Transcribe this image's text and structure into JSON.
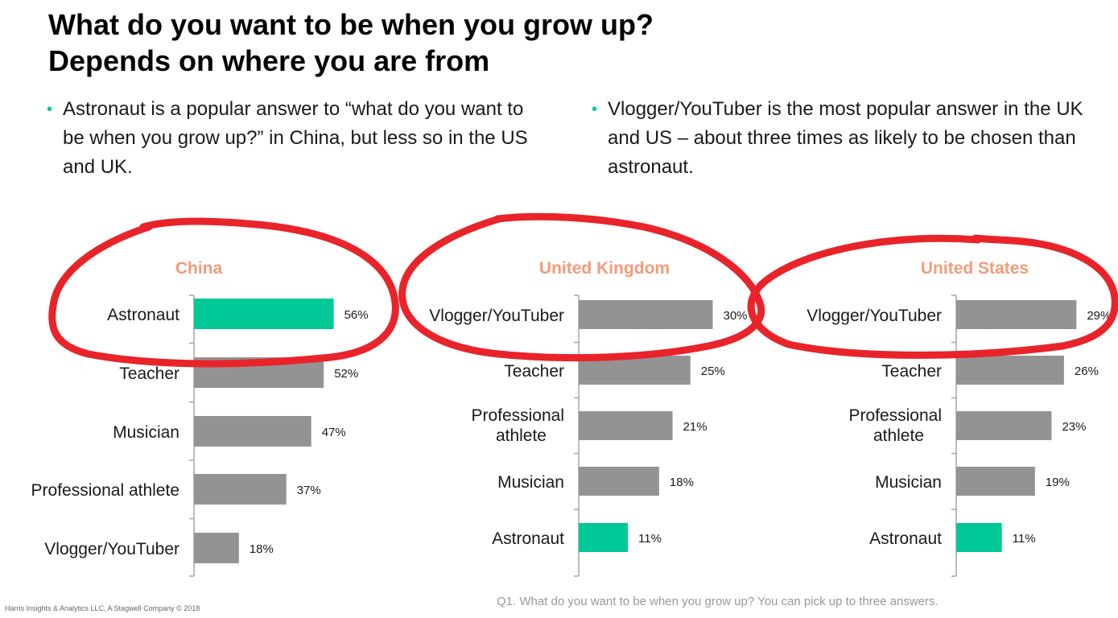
{
  "title": "What do you want to be when you grow up? Depends on where you are from",
  "bullets": [
    "Astronaut is a popular answer to “what do you want to be when you grow up?” in China, but less so in the US and UK.",
    "Vlogger/YouTuber is the most popular answer in the UK and US – about three times as likely to be chosen than astronaut."
  ],
  "bullet_marker": "•",
  "footer": {
    "left": "Harris Insights & Analytics LLC, A Stagwell Company © 2018",
    "right": "Q1. What do you want to be when you grow up? You can pick up to three answers."
  },
  "colors": {
    "bar_default": "#939393",
    "bar_highlight": "#00c896",
    "panel_title": "#f39b78",
    "annotation": "#e8242a",
    "axis": "#a6a6a6"
  },
  "chart_data": [
    {
      "type": "bar",
      "orientation": "horizontal",
      "title": "China",
      "categories": [
        "Astronaut",
        "Teacher",
        "Musician",
        "Professional athlete",
        "Vlogger/YouTuber"
      ],
      "values": [
        56,
        52,
        47,
        37,
        18
      ],
      "value_labels": [
        "56%",
        "52%",
        "47%",
        "37%",
        "18%"
      ],
      "highlight": "Astronaut",
      "xlim": [
        0,
        100
      ]
    },
    {
      "type": "bar",
      "orientation": "horizontal",
      "title": "United Kingdom",
      "categories": [
        "Vlogger/YouTuber",
        "Teacher",
        "Professional athlete",
        "Musician",
        "Astronaut"
      ],
      "values": [
        30,
        25,
        21,
        18,
        11
      ],
      "value_labels": [
        "30%",
        "25%",
        "21%",
        "18%",
        "11%"
      ],
      "highlight": "Astronaut",
      "xlim": [
        0,
        100
      ]
    },
    {
      "type": "bar",
      "orientation": "horizontal",
      "title": "United States",
      "categories": [
        "Vlogger/YouTuber",
        "Teacher",
        "Professional athlete",
        "Musician",
        "Astronaut"
      ],
      "values": [
        29,
        26,
        23,
        19,
        11
      ],
      "value_labels": [
        "29%",
        "26%",
        "23%",
        "19%",
        "11%"
      ],
      "highlight": "Astronaut",
      "xlim": [
        0,
        100
      ]
    }
  ]
}
